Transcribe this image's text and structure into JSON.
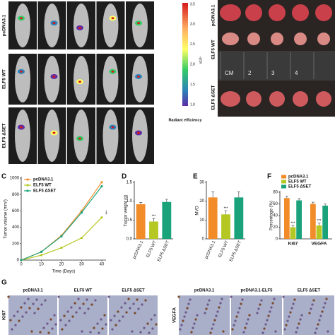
{
  "top": {
    "row_labels": [
      "pcDNA3.1",
      "ELF5 WT",
      "ELF5 ΔSET"
    ],
    "colorbar": {
      "ticks": [
        "3.5",
        "3.0",
        "2.5",
        "2.0",
        "1.5",
        "1.0"
      ],
      "unit": "x10⁸",
      "label": "Radiant efficiency"
    },
    "tumor_row_labels": [
      "pcDNA3.1",
      "ELF5 WT",
      "ELF5 ΔSET"
    ],
    "ruler": [
      "CM",
      "2",
      "3",
      "4"
    ]
  },
  "chart_data": [
    {
      "type": "line",
      "panel": "C",
      "ylabel": "Tumor volume (mm³)",
      "xlabel": "Time (Days)",
      "x": [
        0,
        10,
        20,
        30,
        40
      ],
      "xlim": [
        0,
        40
      ],
      "xticks": [
        0,
        10,
        20,
        30,
        40
      ],
      "ylim": [
        0,
        1000
      ],
      "yticks": [
        0,
        200,
        400,
        600,
        800,
        1000
      ],
      "legend": "top-left",
      "annotation": "***",
      "series": [
        {
          "name": "pcDNA3.1",
          "color": "#f28c28",
          "values": [
            0,
            100,
            300,
            600,
            950
          ]
        },
        {
          "name": "ELF5 WT",
          "color": "#b5c723",
          "values": [
            0,
            60,
            150,
            270,
            520
          ]
        },
        {
          "name": "ELF5 ΔSET",
          "color": "#1aa37a",
          "values": [
            0,
            100,
            290,
            580,
            900
          ]
        }
      ]
    },
    {
      "type": "bar",
      "panel": "D",
      "ylabel": "Tumor weight (g)",
      "categories": [
        "pcDNA3.1",
        "ELF5 WT",
        "ELF5 ΔSET"
      ],
      "values": [
        0.92,
        0.46,
        0.98
      ],
      "errors": [
        0.05,
        0.08,
        0.07
      ],
      "colors": [
        "#f28c28",
        "#b5c723",
        "#1aa37a"
      ],
      "annotation": "***",
      "ylim": [
        0,
        1.5
      ],
      "yticks": [
        {
          "value": 0,
          "label": "0.0"
        },
        0.5,
        {
          "value": 1,
          "label": "1.0"
        },
        1.5
      ]
    },
    {
      "type": "bar",
      "panel": "E",
      "ylabel": "MVD",
      "categories": [
        "pcDNA3.1",
        "ELF5 WT",
        "ELF5 ΔSET"
      ],
      "values": [
        22,
        13,
        22
      ],
      "errors": [
        3,
        2,
        3
      ],
      "colors": [
        "#f28c28",
        "#b5c723",
        "#1aa37a"
      ],
      "annotation": "***",
      "ylim": [
        0,
        30
      ],
      "yticks": [
        0,
        10,
        20,
        30
      ]
    },
    {
      "type": "grouped-bar",
      "panel": "F",
      "ylabel": "Percentage (%)",
      "categories": [
        "Ki67",
        "VEGFA"
      ],
      "annotation": "***",
      "legend": "top",
      "ylim": [
        0,
        80
      ],
      "yticks": [
        0,
        20,
        40,
        60,
        80
      ],
      "series": [
        {
          "name": "pcDNA3.1",
          "color": "#f28c28",
          "values": [
            70,
            60
          ],
          "errors": [
            3,
            3
          ]
        },
        {
          "name": "ELF5 WT",
          "color": "#b5c723",
          "values": [
            20,
            23
          ],
          "errors": [
            3,
            4
          ]
        },
        {
          "name": "ELF5 ΔSET",
          "color": "#1aa37a",
          "values": [
            66,
            57
          ],
          "errors": [
            3,
            3
          ]
        }
      ]
    }
  ],
  "panel_g": {
    "panel": "G",
    "left_columns": [
      "pcDNA3.1",
      "ELF5 WT",
      "ELF5 ΔSET"
    ],
    "right_columns": [
      "pcDNA3.1",
      "pcDNA3.1-ELF5",
      "ELF5 ΔSET"
    ],
    "row_labels": [
      "Ki67",
      "VEGFA"
    ]
  }
}
